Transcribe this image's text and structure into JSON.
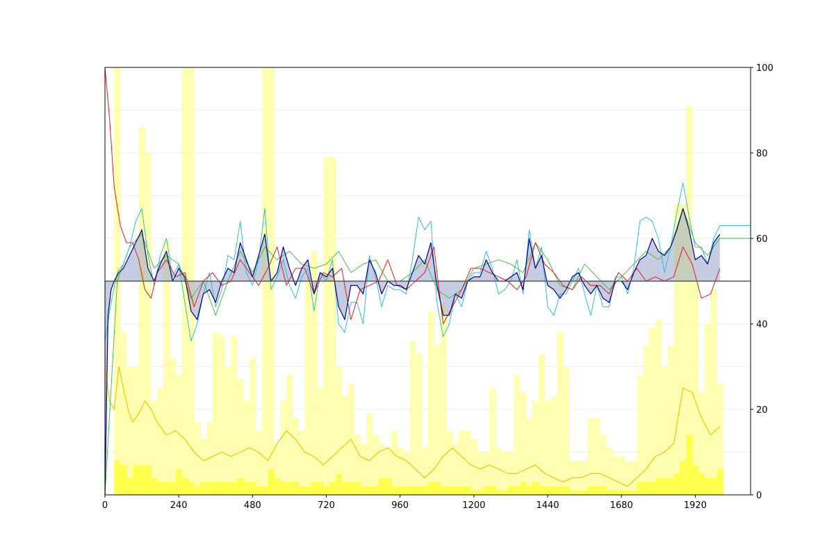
{
  "chart_data": {
    "type": "line",
    "title": "",
    "xlabel": "",
    "ylabel": "",
    "xlim": [
      0,
      2100
    ],
    "ylim": [
      0,
      100
    ],
    "x_ticks": [
      0,
      240,
      480,
      720,
      960,
      1200,
      1440,
      1680,
      1920
    ],
    "y_ticks": [
      0,
      20,
      40,
      60,
      80,
      100
    ],
    "y_axis_side": "right",
    "reference_line": 50,
    "grid": "horizontal light at 10-unit steps",
    "legend": "none",
    "colors": {
      "main": "#000080",
      "cyan": "#1ab8d8",
      "green": "#33bb33",
      "red": "#e41a1c",
      "gold": "#f0c800",
      "bars_light": "#ffffa8",
      "bars_strong": "#ffff44",
      "fill": "#8090c0"
    },
    "series": [
      {
        "key": "main",
        "x": [
          0,
          10,
          20,
          30,
          45,
          60,
          80,
          100,
          120,
          140,
          160,
          180,
          200,
          220,
          240,
          260,
          280,
          300,
          320,
          340,
          360,
          380,
          400,
          420,
          440,
          460,
          480,
          500,
          520,
          540,
          560,
          580,
          600,
          620,
          640,
          660,
          680,
          700,
          720,
          740,
          760,
          780,
          800,
          820,
          840,
          860,
          880,
          900,
          920,
          940,
          960,
          980,
          1000,
          1020,
          1040,
          1060,
          1080,
          1100,
          1120,
          1140,
          1160,
          1180,
          1200,
          1220,
          1240,
          1260,
          1280,
          1300,
          1320,
          1340,
          1360,
          1380,
          1400,
          1420,
          1440,
          1460,
          1480,
          1500,
          1520,
          1540,
          1560,
          1580,
          1600,
          1620,
          1640,
          1660,
          1680,
          1700,
          1720,
          1740,
          1760,
          1780,
          1800,
          1820,
          1840,
          1860,
          1880,
          1900,
          1920,
          1940,
          1960,
          1980,
          2000
        ],
        "y": [
          0,
          42,
          48,
          50,
          52,
          53,
          56,
          59,
          62,
          53,
          50,
          54,
          57,
          50,
          53,
          51,
          43,
          41,
          47,
          48,
          45,
          50,
          53,
          52,
          59,
          55,
          51,
          56,
          61,
          50,
          52,
          58,
          53,
          49,
          53,
          55,
          47,
          52,
          51,
          53,
          44,
          41,
          49,
          49,
          47,
          55,
          52,
          47,
          50,
          49,
          49,
          48,
          52,
          56,
          54,
          59,
          49,
          42,
          42,
          47,
          46,
          50,
          51,
          51,
          55,
          52,
          50,
          50,
          51,
          52,
          48,
          60,
          53,
          56,
          49,
          48,
          46,
          48,
          51,
          52,
          49,
          47,
          49,
          46,
          45,
          50,
          50,
          48,
          52,
          55,
          56,
          60,
          57,
          56,
          58,
          62,
          67,
          62,
          55,
          56,
          54,
          59,
          61
        ]
      },
      {
        "key": "cyan",
        "x": [
          0,
          20,
          40,
          60,
          80,
          100,
          120,
          140,
          160,
          180,
          200,
          220,
          240,
          260,
          280,
          300,
          320,
          340,
          360,
          380,
          400,
          420,
          440,
          460,
          480,
          500,
          520,
          540,
          560,
          580,
          600,
          620,
          640,
          660,
          680,
          700,
          720,
          740,
          760,
          780,
          800,
          820,
          840,
          860,
          880,
          900,
          920,
          940,
          960,
          980,
          1000,
          1020,
          1040,
          1060,
          1080,
          1100,
          1120,
          1140,
          1160,
          1180,
          1200,
          1220,
          1240,
          1260,
          1280,
          1300,
          1320,
          1340,
          1360,
          1380,
          1400,
          1420,
          1440,
          1460,
          1480,
          1500,
          1520,
          1540,
          1560,
          1580,
          1600,
          1620,
          1640,
          1660,
          1680,
          1700,
          1720,
          1740,
          1760,
          1780,
          1800,
          1820,
          1840,
          1860,
          1880,
          1900,
          1920,
          1940,
          1960,
          1980,
          2000,
          2100
        ],
        "y": [
          36,
          45,
          52,
          54,
          58,
          64,
          67,
          56,
          49,
          56,
          60,
          51,
          54,
          45,
          36,
          40,
          47,
          52,
          44,
          48,
          56,
          55,
          64,
          52,
          49,
          55,
          67,
          48,
          51,
          55,
          49,
          46,
          51,
          53,
          43,
          52,
          50,
          55,
          40,
          38,
          45,
          45,
          40,
          56,
          51,
          44,
          49,
          48,
          48,
          47,
          55,
          65,
          62,
          64,
          45,
          37,
          40,
          47,
          44,
          50,
          52,
          52,
          57,
          53,
          47,
          48,
          50,
          55,
          47,
          62,
          53,
          58,
          44,
          42,
          47,
          47,
          50,
          53,
          47,
          42,
          49,
          44,
          44,
          51,
          51,
          47,
          53,
          64,
          65,
          64,
          60,
          52,
          58,
          66,
          73,
          65,
          58,
          58,
          54,
          60,
          63,
          63
        ]
      },
      {
        "key": "green",
        "x": [
          0,
          40,
          80,
          120,
          160,
          200,
          240,
          280,
          320,
          360,
          400,
          440,
          480,
          520,
          560,
          600,
          640,
          680,
          720,
          760,
          800,
          840,
          880,
          920,
          960,
          1000,
          1040,
          1080,
          1120,
          1160,
          1200,
          1240,
          1280,
          1320,
          1360,
          1400,
          1440,
          1480,
          1520,
          1560,
          1600,
          1640,
          1680,
          1720,
          1760,
          1800,
          1840,
          1880,
          1920,
          1960,
          2000,
          2100
        ],
        "y": [
          0,
          50,
          58,
          61,
          53,
          56,
          54,
          46,
          50,
          42,
          50,
          57,
          52,
          58,
          55,
          57,
          54,
          53,
          54,
          57,
          52,
          54,
          55,
          50,
          50,
          52,
          55,
          48,
          46,
          48,
          53,
          54,
          55,
          54,
          52,
          59,
          55,
          49,
          48,
          54,
          51,
          48,
          51,
          54,
          57,
          55,
          58,
          67,
          59,
          56,
          60,
          60
        ]
      },
      {
        "key": "red",
        "x": [
          0,
          15,
          30,
          50,
          70,
          90,
          110,
          130,
          150,
          170,
          200,
          230,
          260,
          290,
          320,
          350,
          380,
          410,
          440,
          470,
          500,
          530,
          560,
          590,
          620,
          650,
          680,
          710,
          740,
          770,
          800,
          830,
          860,
          890,
          920,
          950,
          980,
          1010,
          1040,
          1070,
          1100,
          1130,
          1160,
          1190,
          1220,
          1250,
          1280,
          1310,
          1340,
          1370,
          1400,
          1430,
          1460,
          1490,
          1520,
          1550,
          1580,
          1610,
          1640,
          1670,
          1700,
          1730,
          1760,
          1790,
          1820,
          1850,
          1880,
          1910,
          1940,
          1970,
          2000
        ],
        "y": [
          100,
          88,
          72,
          63,
          59,
          59,
          55,
          48,
          46,
          52,
          55,
          51,
          52,
          44,
          50,
          52,
          49,
          50,
          55,
          52,
          49,
          53,
          58,
          49,
          53,
          53,
          47,
          52,
          51,
          53,
          41,
          48,
          49,
          50,
          55,
          49,
          48,
          50,
          52,
          58,
          40,
          44,
          48,
          53,
          53,
          52,
          51,
          50,
          48,
          51,
          59,
          54,
          52,
          49,
          48,
          51,
          49,
          49,
          47,
          52,
          50,
          53,
          50,
          51,
          50,
          51,
          58,
          54,
          46,
          47,
          53
        ]
      },
      {
        "key": "gold",
        "x": [
          0,
          15,
          30,
          45,
          60,
          75,
          90,
          110,
          130,
          150,
          170,
          200,
          230,
          260,
          290,
          320,
          350,
          380,
          410,
          440,
          470,
          500,
          530,
          560,
          590,
          620,
          650,
          680,
          710,
          740,
          770,
          800,
          830,
          860,
          890,
          920,
          950,
          980,
          1010,
          1040,
          1070,
          1100,
          1130,
          1160,
          1190,
          1220,
          1250,
          1280,
          1310,
          1340,
          1370,
          1400,
          1430,
          1460,
          1490,
          1520,
          1550,
          1580,
          1610,
          1640,
          1670,
          1700,
          1730,
          1760,
          1790,
          1820,
          1850,
          1880,
          1910,
          1940,
          1970,
          2000
        ],
        "y": [
          30,
          22,
          20,
          30,
          25,
          20,
          17,
          19,
          22,
          20,
          17,
          14,
          15,
          13,
          10,
          8,
          9,
          10,
          9,
          10,
          11,
          10,
          8,
          12,
          15,
          13,
          10,
          9,
          7,
          9,
          11,
          13,
          9,
          8,
          10,
          11,
          9,
          8,
          6,
          4,
          6,
          9,
          11,
          9,
          7,
          6,
          7,
          6,
          5,
          5,
          6,
          7,
          5,
          4,
          3,
          4,
          4,
          5,
          5,
          4,
          3,
          2,
          4,
          6,
          9,
          10,
          12,
          25,
          24,
          18,
          14,
          16
        ]
      },
      {
        "key": "bars_light",
        "x": [
          40,
          60,
          80,
          100,
          120,
          140,
          160,
          180,
          200,
          220,
          240,
          260,
          280,
          300,
          320,
          340,
          360,
          380,
          400,
          420,
          440,
          460,
          480,
          500,
          520,
          540,
          560,
          580,
          600,
          620,
          640,
          660,
          680,
          700,
          720,
          740,
          760,
          780,
          800,
          820,
          840,
          860,
          880,
          900,
          920,
          940,
          960,
          980,
          1000,
          1020,
          1040,
          1060,
          1080,
          1100,
          1120,
          1140,
          1160,
          1180,
          1200,
          1220,
          1240,
          1260,
          1280,
          1300,
          1320,
          1340,
          1360,
          1380,
          1400,
          1420,
          1440,
          1460,
          1480,
          1500,
          1520,
          1540,
          1560,
          1580,
          1600,
          1620,
          1640,
          1660,
          1680,
          1700,
          1720,
          1740,
          1760,
          1780,
          1800,
          1820,
          1840,
          1860,
          1880,
          1900,
          1920,
          1940,
          1960,
          1980,
          2000
        ],
        "y": [
          100,
          38,
          30,
          30,
          86,
          80,
          22,
          25,
          60,
          32,
          28,
          100,
          100,
          17,
          13,
          17,
          38,
          37,
          30,
          37,
          27,
          22,
          32,
          15,
          100,
          100,
          12,
          22,
          28,
          18,
          15,
          50,
          57,
          25,
          79,
          79,
          30,
          23,
          26,
          14,
          12,
          19,
          14,
          12,
          11,
          15,
          11,
          10,
          36,
          33,
          11,
          43,
          35,
          45,
          15,
          12,
          15,
          15,
          13,
          10,
          10,
          25,
          11,
          10,
          10,
          28,
          24,
          18,
          22,
          33,
          22,
          23,
          38,
          30,
          8,
          8,
          8,
          18,
          18,
          14,
          11,
          9,
          9,
          8,
          8,
          28,
          35,
          39,
          41,
          30,
          35,
          68,
          68,
          91,
          51,
          24,
          40,
          48,
          26
        ]
      },
      {
        "key": "bars_strong",
        "x": [
          40,
          60,
          80,
          100,
          120,
          140,
          160,
          180,
          200,
          220,
          240,
          260,
          280,
          300,
          320,
          340,
          360,
          380,
          400,
          420,
          440,
          460,
          480,
          500,
          520,
          540,
          560,
          580,
          600,
          620,
          640,
          660,
          680,
          700,
          720,
          740,
          760,
          780,
          800,
          820,
          840,
          860,
          880,
          900,
          920,
          940,
          960,
          980,
          1000,
          1020,
          1040,
          1060,
          1080,
          1100,
          1120,
          1140,
          1160,
          1180,
          1200,
          1220,
          1240,
          1260,
          1280,
          1300,
          1320,
          1340,
          1360,
          1380,
          1400,
          1420,
          1440,
          1460,
          1480,
          1500,
          1520,
          1540,
          1560,
          1580,
          1600,
          1620,
          1640,
          1660,
          1680,
          1700,
          1720,
          1740,
          1760,
          1780,
          1800,
          1820,
          1840,
          1860,
          1880,
          1900,
          1920,
          1940,
          1960,
          1980,
          2000
        ],
        "y": [
          8,
          7,
          4,
          7,
          7,
          7,
          4,
          3,
          3,
          3,
          6,
          4,
          3,
          2,
          3,
          3,
          3,
          3,
          3,
          3,
          4,
          3,
          3,
          2,
          2,
          6,
          4,
          3,
          3,
          3,
          2,
          2,
          3,
          3,
          2,
          3,
          5,
          3,
          3,
          3,
          2,
          2,
          2,
          4,
          4,
          2,
          2,
          2,
          2,
          2,
          2,
          3,
          3,
          2,
          2,
          2,
          2,
          2,
          1,
          1,
          2,
          2,
          1,
          1,
          2,
          2,
          3,
          2,
          3,
          2,
          2,
          2,
          2,
          2,
          1,
          1,
          1,
          2,
          2,
          2,
          1,
          1,
          1,
          1,
          1,
          3,
          3,
          3,
          4,
          4,
          4,
          5,
          8,
          14,
          7,
          5,
          4,
          4,
          6
        ]
      }
    ]
  }
}
